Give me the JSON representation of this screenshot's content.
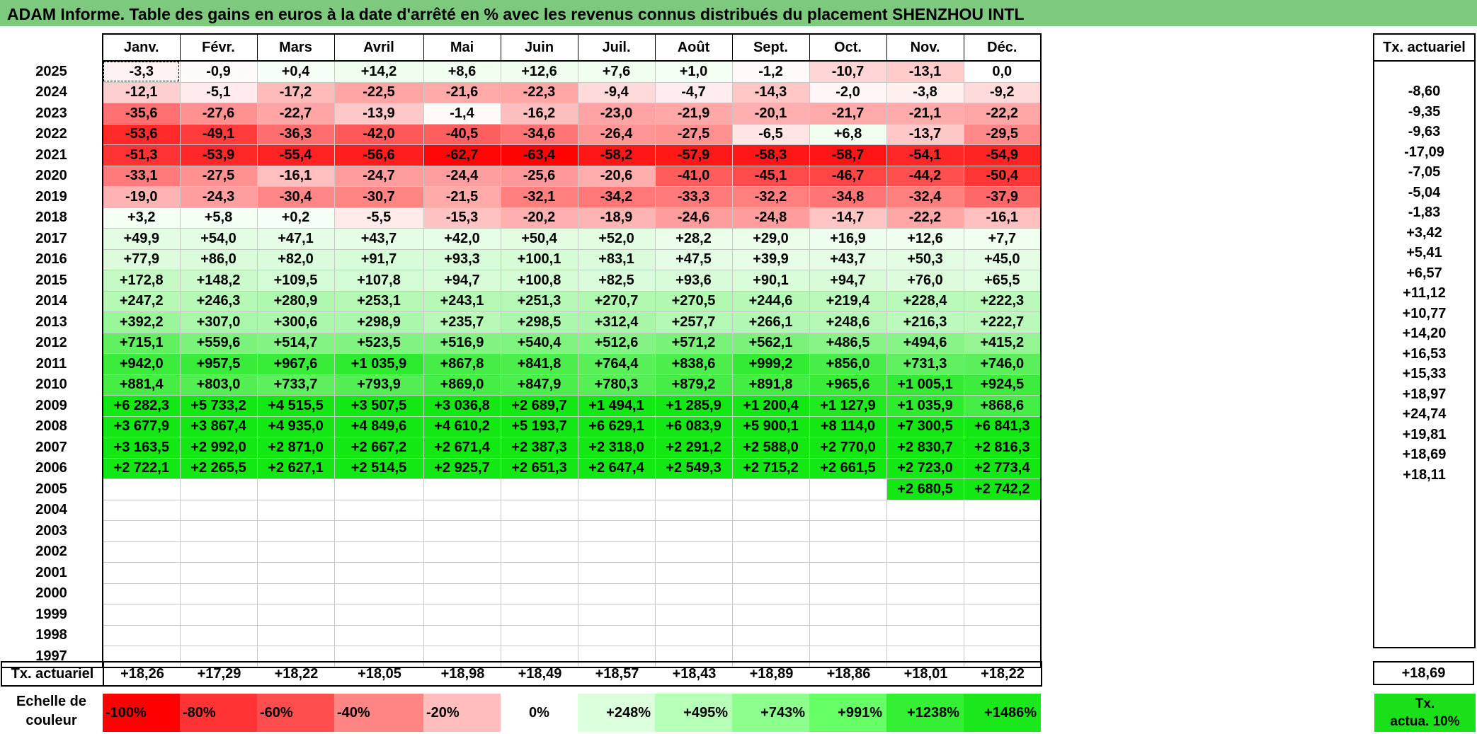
{
  "title": "ADAM Informe. Table des gains en euros à la date d'arrêté en % avec les revenus connus distribués du placement SHENZHOU INTL",
  "months": [
    "Janv.",
    "Févr.",
    "Mars",
    "Avril",
    "Mai",
    "Juin",
    "Juil.",
    "Août",
    "Sept.",
    "Oct.",
    "Nov.",
    "Déc."
  ],
  "tx_header": "Tx. actuariel",
  "rows": [
    {
      "year": "2025",
      "vals": [
        "-3,3",
        "-0,9",
        "+0,4",
        "+14,2",
        "+8,6",
        "+12,6",
        "+7,6",
        "+1,0",
        "-1,2",
        "-10,7",
        "-13,1",
        "0,0"
      ],
      "tx": ""
    },
    {
      "year": "2024",
      "vals": [
        "-12,1",
        "-5,1",
        "-17,2",
        "-22,5",
        "-21,6",
        "-22,3",
        "-9,4",
        "-4,7",
        "-14,3",
        "-2,0",
        "-3,8",
        "-9,2"
      ],
      "tx": "-8,60"
    },
    {
      "year": "2023",
      "vals": [
        "-35,6",
        "-27,6",
        "-22,7",
        "-13,9",
        "-1,4",
        "-16,2",
        "-23,0",
        "-21,9",
        "-20,1",
        "-21,7",
        "-21,1",
        "-22,2"
      ],
      "tx": "-9,35"
    },
    {
      "year": "2022",
      "vals": [
        "-53,6",
        "-49,1",
        "-36,3",
        "-42,0",
        "-40,5",
        "-34,6",
        "-26,4",
        "-27,5",
        "-6,5",
        "+6,8",
        "-13,7",
        "-29,5"
      ],
      "tx": "-9,63"
    },
    {
      "year": "2021",
      "vals": [
        "-51,3",
        "-53,9",
        "-55,4",
        "-56,6",
        "-62,7",
        "-63,4",
        "-58,2",
        "-57,9",
        "-58,3",
        "-58,7",
        "-54,1",
        "-54,9"
      ],
      "tx": "-17,09"
    },
    {
      "year": "2020",
      "vals": [
        "-33,1",
        "-27,5",
        "-16,1",
        "-24,7",
        "-24,4",
        "-25,6",
        "-20,6",
        "-41,0",
        "-45,1",
        "-46,7",
        "-44,2",
        "-50,4"
      ],
      "tx": "-7,05"
    },
    {
      "year": "2019",
      "vals": [
        "-19,0",
        "-24,3",
        "-30,4",
        "-30,7",
        "-21,5",
        "-32,1",
        "-34,2",
        "-33,3",
        "-32,2",
        "-34,8",
        "-32,4",
        "-37,9"
      ],
      "tx": "-5,04"
    },
    {
      "year": "2018",
      "vals": [
        "+3,2",
        "+5,8",
        "+0,2",
        "-5,5",
        "-15,3",
        "-20,2",
        "-18,9",
        "-24,6",
        "-24,8",
        "-14,7",
        "-22,2",
        "-16,1"
      ],
      "tx": "-1,83"
    },
    {
      "year": "2017",
      "vals": [
        "+49,9",
        "+54,0",
        "+47,1",
        "+43,7",
        "+42,0",
        "+50,4",
        "+52,0",
        "+28,2",
        "+29,0",
        "+16,9",
        "+12,6",
        "+7,7"
      ],
      "tx": "+3,42"
    },
    {
      "year": "2016",
      "vals": [
        "+77,9",
        "+86,0",
        "+82,0",
        "+91,7",
        "+93,3",
        "+100,1",
        "+83,1",
        "+47,5",
        "+39,9",
        "+43,7",
        "+50,3",
        "+45,0"
      ],
      "tx": "+5,41"
    },
    {
      "year": "2015",
      "vals": [
        "+172,8",
        "+148,2",
        "+109,5",
        "+107,8",
        "+94,7",
        "+100,8",
        "+82,5",
        "+93,6",
        "+90,1",
        "+94,7",
        "+76,0",
        "+65,5"
      ],
      "tx": "+6,57"
    },
    {
      "year": "2014",
      "vals": [
        "+247,2",
        "+246,3",
        "+280,9",
        "+253,1",
        "+243,1",
        "+251,3",
        "+270,7",
        "+270,5",
        "+244,6",
        "+219,4",
        "+228,4",
        "+222,3"
      ],
      "tx": "+11,12"
    },
    {
      "year": "2013",
      "vals": [
        "+392,2",
        "+307,0",
        "+300,6",
        "+298,9",
        "+235,7",
        "+298,5",
        "+312,4",
        "+257,7",
        "+266,1",
        "+248,6",
        "+216,3",
        "+222,7"
      ],
      "tx": "+10,77"
    },
    {
      "year": "2012",
      "vals": [
        "+715,1",
        "+559,6",
        "+514,7",
        "+523,5",
        "+516,9",
        "+540,4",
        "+512,6",
        "+571,2",
        "+562,1",
        "+486,5",
        "+494,6",
        "+415,2"
      ],
      "tx": "+14,20"
    },
    {
      "year": "2011",
      "vals": [
        "+942,0",
        "+957,5",
        "+967,6",
        "+1 035,9",
        "+867,8",
        "+841,8",
        "+764,4",
        "+838,6",
        "+999,2",
        "+856,0",
        "+731,3",
        "+746,0"
      ],
      "tx": "+16,53"
    },
    {
      "year": "2010",
      "vals": [
        "+881,4",
        "+803,0",
        "+733,7",
        "+793,9",
        "+869,0",
        "+847,9",
        "+780,3",
        "+879,2",
        "+891,8",
        "+965,6",
        "+1 005,1",
        "+924,5"
      ],
      "tx": "+15,33"
    },
    {
      "year": "2009",
      "vals": [
        "+6 282,3",
        "+5 733,2",
        "+4 515,5",
        "+3 507,5",
        "+3 036,8",
        "+2 689,7",
        "+1 494,1",
        "+1 285,9",
        "+1 200,4",
        "+1 127,9",
        "+1 035,9",
        "+868,6"
      ],
      "tx": "+18,97"
    },
    {
      "year": "2008",
      "vals": [
        "+3 677,9",
        "+3 867,4",
        "+4 935,0",
        "+4 849,6",
        "+4 610,2",
        "+5 193,7",
        "+6 629,1",
        "+6 083,9",
        "+5 900,1",
        "+8 114,0",
        "+7 300,5",
        "+6 841,3"
      ],
      "tx": "+24,74"
    },
    {
      "year": "2007",
      "vals": [
        "+3 163,5",
        "+2 992,0",
        "+2 871,0",
        "+2 667,2",
        "+2 671,4",
        "+2 387,3",
        "+2 318,0",
        "+2 291,2",
        "+2 588,0",
        "+2 770,0",
        "+2 830,7",
        "+2 816,3"
      ],
      "tx": "+19,81"
    },
    {
      "year": "2006",
      "vals": [
        "+2 722,1",
        "+2 265,5",
        "+2 627,1",
        "+2 514,5",
        "+2 925,7",
        "+2 651,3",
        "+2 647,4",
        "+2 549,3",
        "+2 715,2",
        "+2 661,5",
        "+2 723,0",
        "+2 773,4"
      ],
      "tx": "+18,69"
    },
    {
      "year": "2005",
      "vals": [
        "",
        "",
        "",
        "",
        "",
        "",
        "",
        "",
        "",
        "",
        "+2 680,5",
        "+2 742,2"
      ],
      "tx": "+18,11"
    },
    {
      "year": "2004",
      "vals": [
        "",
        "",
        "",
        "",
        "",
        "",
        "",
        "",
        "",
        "",
        "",
        ""
      ],
      "tx": ""
    },
    {
      "year": "2003",
      "vals": [
        "",
        "",
        "",
        "",
        "",
        "",
        "",
        "",
        "",
        "",
        "",
        ""
      ],
      "tx": ""
    },
    {
      "year": "2002",
      "vals": [
        "",
        "",
        "",
        "",
        "",
        "",
        "",
        "",
        "",
        "",
        "",
        ""
      ],
      "tx": ""
    },
    {
      "year": "2001",
      "vals": [
        "",
        "",
        "",
        "",
        "",
        "",
        "",
        "",
        "",
        "",
        "",
        ""
      ],
      "tx": ""
    },
    {
      "year": "2000",
      "vals": [
        "",
        "",
        "",
        "",
        "",
        "",
        "",
        "",
        "",
        "",
        "",
        ""
      ],
      "tx": ""
    },
    {
      "year": "1999",
      "vals": [
        "",
        "",
        "",
        "",
        "",
        "",
        "",
        "",
        "",
        "",
        "",
        ""
      ],
      "tx": ""
    },
    {
      "year": "1998",
      "vals": [
        "",
        "",
        "",
        "",
        "",
        "",
        "",
        "",
        "",
        "",
        "",
        ""
      ],
      "tx": ""
    },
    {
      "year": "1997",
      "vals": [
        "",
        "",
        "",
        "",
        "",
        "",
        "",
        "",
        "",
        "",
        "",
        ""
      ],
      "tx": ""
    }
  ],
  "footer": {
    "label": "Tx. actuariel",
    "vals": [
      "+18,26",
      "+17,29",
      "+18,22",
      "+18,05",
      "+18,98",
      "+18,49",
      "+18,57",
      "+18,43",
      "+18,89",
      "+18,86",
      "+18,01",
      "+18,22"
    ],
    "total": "+18,69"
  },
  "legend": {
    "label_line1": "Echelle de",
    "label_line2": "couleur",
    "items": [
      {
        "text": "-100%",
        "color": "#ff0000"
      },
      {
        "text": "-80%",
        "color": "#ff3333"
      },
      {
        "text": "-60%",
        "color": "#ff4d4d"
      },
      {
        "text": "-40%",
        "color": "#ff8585"
      },
      {
        "text": "-20%",
        "color": "#ffbdbd"
      },
      {
        "text": "0%",
        "color": "#ffffff"
      },
      {
        "text": "+248%",
        "color": "#dbffdb"
      },
      {
        "text": "+495%",
        "color": "#b6ffb6"
      },
      {
        "text": "+743%",
        "color": "#8cff8c"
      },
      {
        "text": "+991%",
        "color": "#66ff66"
      },
      {
        "text": "+1238%",
        "color": "#33f033"
      },
      {
        "text": "+1486%",
        "color": "#1ae81a"
      }
    ],
    "tx_line1": "Tx.",
    "tx_line2": "actua. 10%",
    "tx_color": "#1ae01a"
  }
}
